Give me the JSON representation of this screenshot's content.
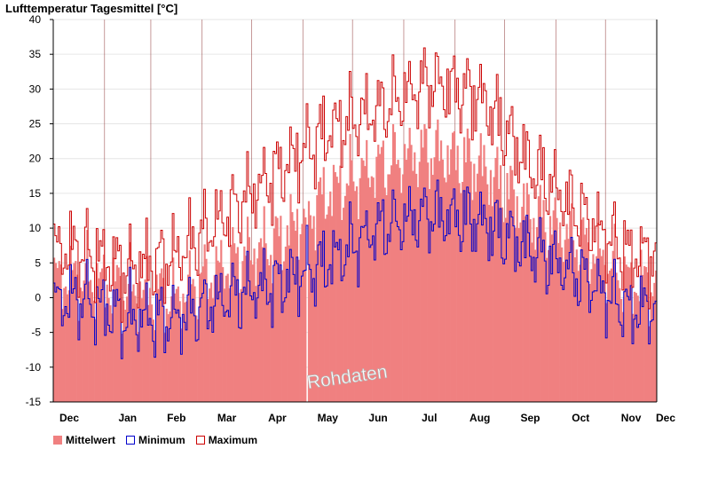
{
  "chart_data": {
    "type": "bar+line",
    "title": "Lufttemperatur Tagesmittel [°C]",
    "ylim": [
      -15,
      40
    ],
    "yticks": [
      -15,
      -10,
      -5,
      0,
      5,
      10,
      15,
      20,
      25,
      30,
      35,
      40
    ],
    "grid": true,
    "months": [
      "Dec",
      "Jan",
      "Feb",
      "Mar",
      "Apr",
      "May",
      "Jun",
      "Jul",
      "Aug",
      "Sep",
      "Oct",
      "Nov",
      "Dec"
    ],
    "days": 365,
    "month_start_day": [
      0,
      31,
      59,
      90,
      120,
      151,
      181,
      212,
      243,
      273,
      304,
      334,
      365
    ],
    "watermark": "Rohdaten",
    "missing_day": 153,
    "series": [
      {
        "name": "Mittelwert",
        "kind": "bar",
        "color": "#f08080",
        "monthly_values": [
          3,
          1,
          0,
          5,
          8,
          15,
          19,
          21,
          19,
          12,
          8,
          2
        ]
      },
      {
        "name": "Minimum",
        "kind": "line",
        "color": "#0000cc",
        "monthly_values": [
          0,
          -3,
          -3,
          0,
          2,
          5,
          10,
          12,
          11,
          7,
          3,
          -2
        ]
      },
      {
        "name": "Maximum",
        "kind": "line",
        "color": "#cc0000",
        "monthly_values": [
          7,
          4,
          6,
          12,
          18,
          24,
          27,
          31,
          29,
          19,
          12,
          6
        ]
      }
    ],
    "legend_position": "bottom-left"
  },
  "legend": [
    {
      "label": "Mittelwert",
      "color": "#f08080",
      "style": "fill"
    },
    {
      "label": "Minimum",
      "color": "#0000cc",
      "style": "outline"
    },
    {
      "label": "Maximum",
      "color": "#cc0000",
      "style": "outline"
    }
  ]
}
